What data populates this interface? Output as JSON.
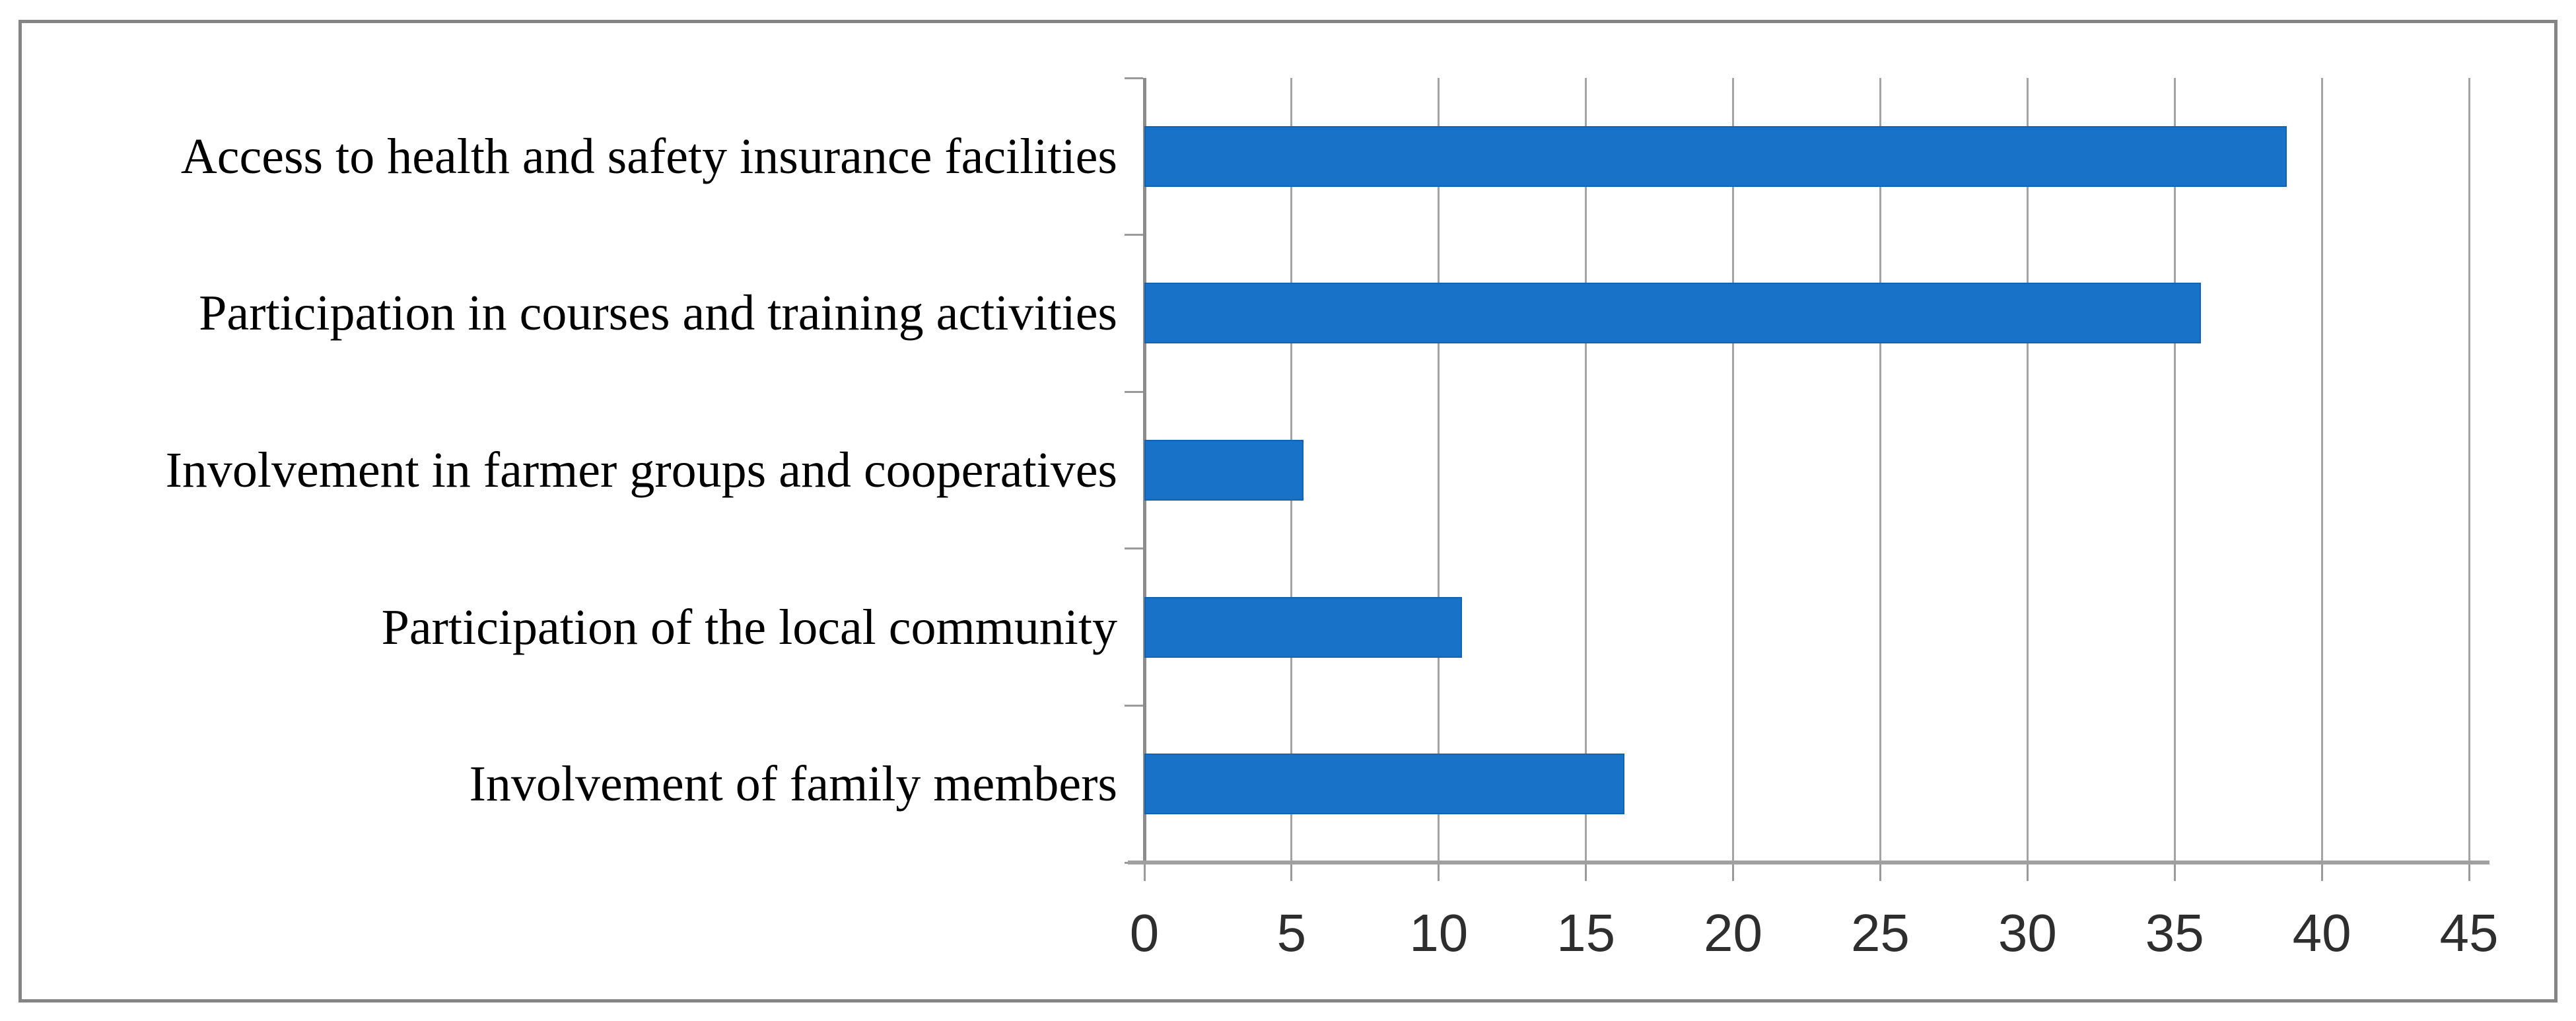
{
  "chart_data": {
    "type": "bar",
    "orientation": "horizontal",
    "title": "",
    "xlabel": "",
    "ylabel": "",
    "categories": [
      "Access to health and safety insurance facilities",
      "Participation in courses and training activities",
      "Involvement in farmer groups and cooperatives",
      "Participation of the local community",
      "Involvement of family members"
    ],
    "values": [
      38.8,
      35.9,
      5.4,
      10.8,
      16.3
    ],
    "xlim": [
      0,
      45
    ],
    "x_ticks": [
      0,
      5,
      10,
      15,
      20,
      25,
      30,
      35,
      40,
      45
    ],
    "grid": true,
    "legend": "none",
    "colors": {
      "bar_fill": "#1772c8",
      "bar_edge": "#1463b2",
      "gridline": "#a4a4a4",
      "axis_line": "#a0a0a0",
      "tick_label": "#2e2e2e",
      "category_label": "#000000",
      "chart_border": "#858585",
      "background": "#ffffff"
    }
  }
}
